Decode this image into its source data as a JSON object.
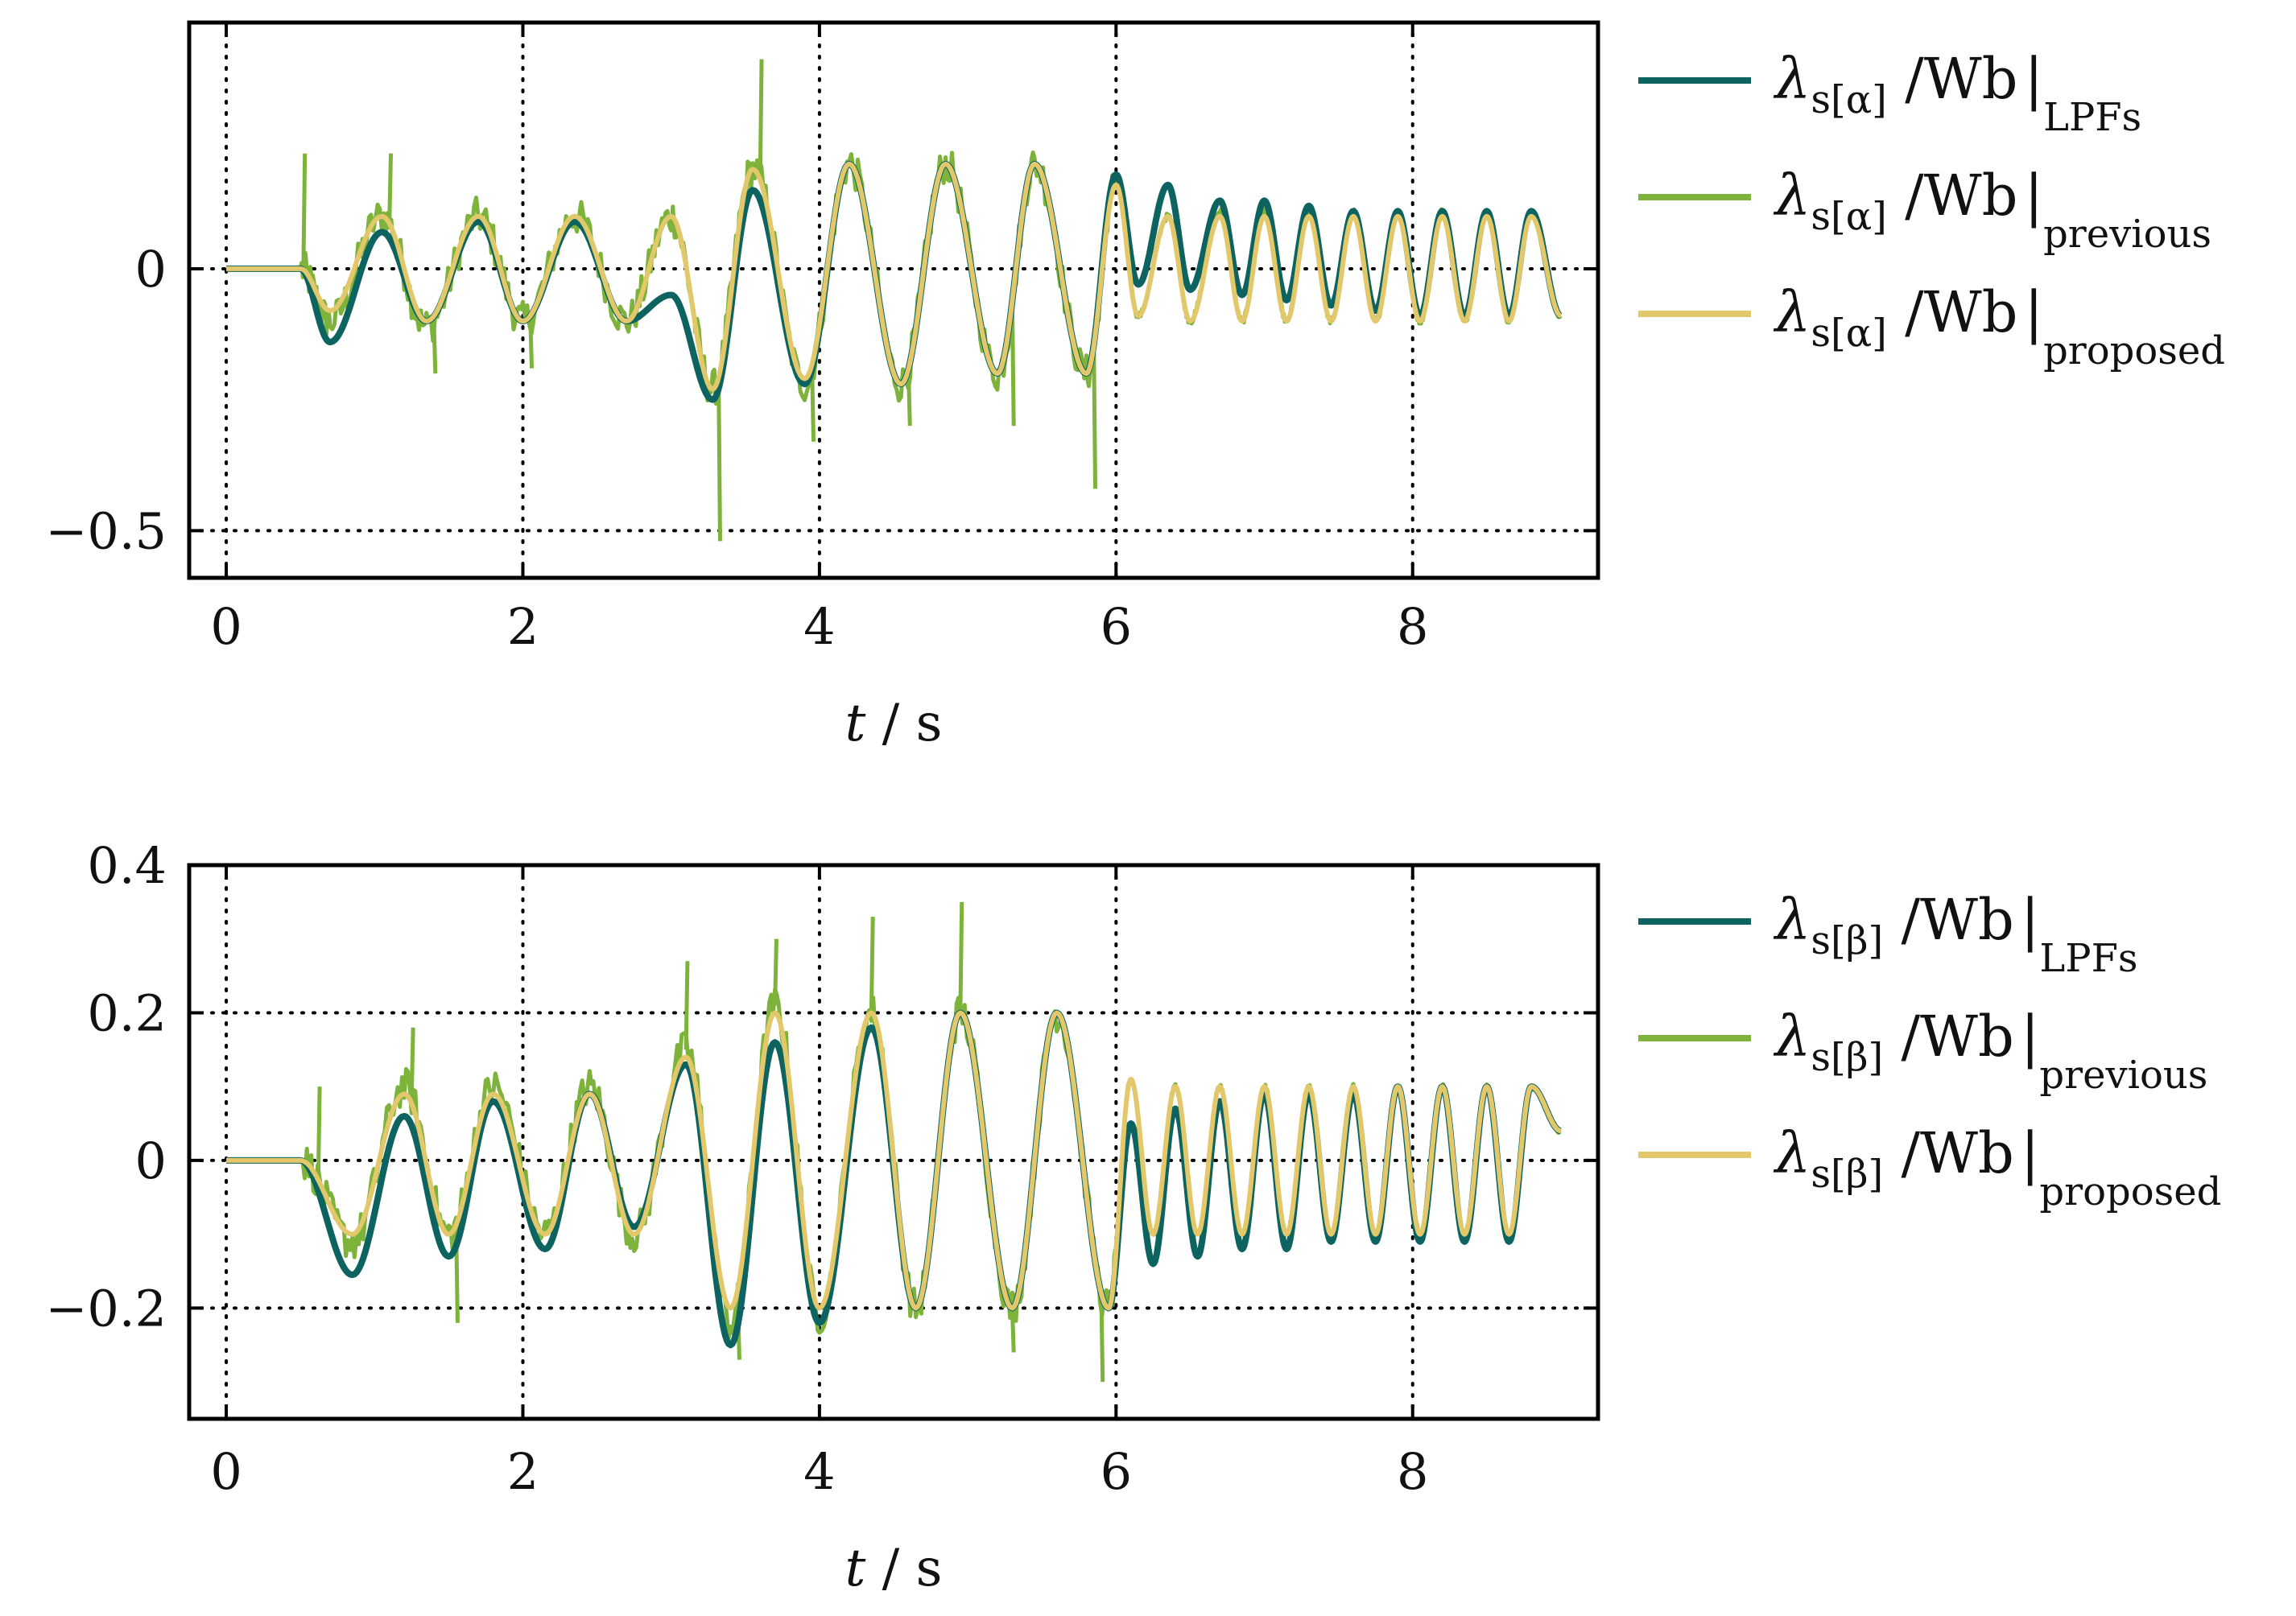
{
  "colors": {
    "lpfs": "#0d6360",
    "previous": "#7db33a",
    "proposed": "#e2c86a",
    "grid": "#000000",
    "axes": "#000000"
  },
  "chart_data": [
    {
      "type": "line",
      "xlabel": "t / s",
      "xlabel_parts": {
        "var": "t",
        "sep": " / ",
        "unit": "s"
      },
      "ylabel": "",
      "xlim": [
        -0.25,
        9.25
      ],
      "ylim": [
        -0.59,
        0.47
      ],
      "xticks": [
        0,
        2,
        4,
        6,
        8
      ],
      "yticks": [
        -0.5,
        0
      ],
      "ytick_labels": [
        "−0.5",
        "0"
      ],
      "grid": true,
      "grid_style": "dotted",
      "legend_position": "right",
      "legend": [
        {
          "symbol": "λ",
          "sub": "s[α]",
          "unit": " /Wb",
          "cond": "LPFs"
        },
        {
          "symbol": "λ",
          "sub": "s[α]",
          "unit": " /Wb",
          "cond": "previous"
        },
        {
          "symbol": "λ",
          "sub": "s[α]",
          "unit": " /Wb",
          "cond": "proposed"
        }
      ],
      "x": [
        0,
        0.5,
        0.7,
        1.05,
        1.35,
        1.7,
        2.0,
        2.35,
        2.7,
        3.0,
        3.28,
        3.55,
        3.9,
        4.2,
        4.55,
        4.85,
        5.2,
        5.45,
        5.8,
        6.0,
        6.15,
        6.35,
        6.5,
        6.7,
        6.85,
        7.0,
        7.15,
        7.3,
        7.45,
        7.6,
        7.75,
        7.9,
        8.05,
        8.2,
        8.35,
        8.5,
        8.65,
        8.8,
        9.0
      ],
      "series": [
        {
          "key": "lpfs",
          "values": [
            0,
            0,
            -0.14,
            0.07,
            -0.1,
            0.09,
            -0.1,
            0.09,
            -0.1,
            -0.05,
            -0.25,
            0.15,
            -0.22,
            0.2,
            -0.22,
            0.2,
            -0.2,
            0.2,
            -0.2,
            0.18,
            -0.03,
            0.16,
            -0.04,
            0.13,
            -0.05,
            0.13,
            -0.06,
            0.12,
            -0.07,
            0.11,
            -0.08,
            0.11,
            -0.09,
            0.11,
            -0.09,
            0.11,
            -0.09,
            0.11,
            -0.09
          ]
        },
        {
          "key": "previous",
          "values": [
            0,
            0,
            -0.1,
            0.1,
            -0.11,
            0.1,
            -0.1,
            0.1,
            -0.1,
            0.1,
            -0.23,
            0.19,
            -0.22,
            0.2,
            -0.22,
            0.2,
            -0.2,
            0.2,
            -0.2,
            0.17,
            -0.09,
            0.1,
            -0.1,
            0.11,
            -0.1,
            0.11,
            -0.1,
            0.11,
            -0.1,
            0.11,
            -0.1,
            0.11,
            -0.1,
            0.11,
            -0.1,
            0.11,
            -0.1,
            0.11,
            -0.09
          ]
        },
        {
          "key": "proposed",
          "values": [
            0,
            0,
            -0.08,
            0.1,
            -0.1,
            0.1,
            -0.1,
            0.1,
            -0.1,
            0.1,
            -0.23,
            0.19,
            -0.21,
            0.2,
            -0.22,
            0.2,
            -0.2,
            0.2,
            -0.2,
            0.16,
            -0.09,
            0.1,
            -0.1,
            0.1,
            -0.1,
            0.1,
            -0.1,
            0.1,
            -0.1,
            0.1,
            -0.1,
            0.1,
            -0.1,
            0.1,
            -0.1,
            0.1,
            -0.1,
            0.1,
            -0.09
          ]
        }
      ],
      "noisy_spikes_previous": [
        {
          "x": 0.52,
          "y": 0.22
        },
        {
          "x": 1.1,
          "y": 0.22
        },
        {
          "x": 1.4,
          "y": -0.2
        },
        {
          "x": 2.05,
          "y": -0.19
        },
        {
          "x": 3.32,
          "y": -0.52
        },
        {
          "x": 3.6,
          "y": 0.4
        },
        {
          "x": 3.95,
          "y": -0.33
        },
        {
          "x": 4.6,
          "y": -0.3
        },
        {
          "x": 5.3,
          "y": -0.3
        },
        {
          "x": 5.85,
          "y": -0.42
        }
      ]
    },
    {
      "type": "line",
      "xlabel": "t / s",
      "xlabel_parts": {
        "var": "t",
        "sep": " / ",
        "unit": "s"
      },
      "ylabel": "",
      "xlim": [
        -0.25,
        9.25
      ],
      "ylim": [
        -0.35,
        0.4
      ],
      "xticks": [
        0,
        2,
        4,
        6,
        8
      ],
      "yticks": [
        -0.2,
        0,
        0.2,
        0.4
      ],
      "ytick_labels": [
        "−0.2",
        "0",
        "0.2",
        "0.4"
      ],
      "grid": true,
      "grid_style": "dotted",
      "legend_position": "right",
      "legend": [
        {
          "symbol": "λ",
          "sub": "s[β]",
          "unit": " /Wb",
          "cond": "LPFs"
        },
        {
          "symbol": "λ",
          "sub": "s[β]",
          "unit": " /Wb",
          "cond": "previous"
        },
        {
          "symbol": "λ",
          "sub": "s[β]",
          "unit": " /Wb",
          "cond": "proposed"
        }
      ],
      "x": [
        0,
        0.5,
        0.85,
        1.2,
        1.5,
        1.8,
        2.15,
        2.45,
        2.75,
        3.1,
        3.4,
        3.7,
        4.0,
        4.35,
        4.65,
        4.95,
        5.3,
        5.6,
        5.95,
        6.1,
        6.25,
        6.4,
        6.55,
        6.7,
        6.85,
        7.0,
        7.15,
        7.3,
        7.45,
        7.6,
        7.75,
        7.9,
        8.05,
        8.2,
        8.35,
        8.5,
        8.65,
        8.8,
        9.0
      ],
      "series": [
        {
          "key": "lpfs",
          "values": [
            0,
            0,
            -0.155,
            0.06,
            -0.13,
            0.08,
            -0.12,
            0.09,
            -0.09,
            0.13,
            -0.25,
            0.16,
            -0.22,
            0.18,
            -0.2,
            0.2,
            -0.2,
            0.2,
            -0.2,
            0.05,
            -0.14,
            0.07,
            -0.13,
            0.08,
            -0.12,
            0.09,
            -0.12,
            0.09,
            -0.11,
            0.09,
            -0.11,
            0.1,
            -0.11,
            0.1,
            -0.11,
            0.1,
            -0.11,
            0.1,
            0.04
          ]
        },
        {
          "key": "previous",
          "values": [
            0,
            0,
            -0.11,
            0.1,
            -0.1,
            0.1,
            -0.1,
            0.1,
            -0.1,
            0.15,
            -0.22,
            0.21,
            -0.21,
            0.2,
            -0.2,
            0.2,
            -0.2,
            0.2,
            -0.2,
            0.11,
            -0.1,
            0.1,
            -0.1,
            0.1,
            -0.1,
            0.1,
            -0.1,
            0.1,
            -0.1,
            0.1,
            -0.1,
            0.1,
            -0.1,
            0.1,
            -0.1,
            0.1,
            -0.1,
            0.1,
            0.04
          ]
        },
        {
          "key": "proposed",
          "values": [
            0,
            0,
            -0.1,
            0.09,
            -0.1,
            0.09,
            -0.1,
            0.09,
            -0.1,
            0.14,
            -0.2,
            0.2,
            -0.2,
            0.2,
            -0.2,
            0.2,
            -0.2,
            0.2,
            -0.2,
            0.11,
            -0.1,
            0.1,
            -0.1,
            0.1,
            -0.1,
            0.1,
            -0.1,
            0.1,
            -0.1,
            0.1,
            -0.1,
            0.1,
            -0.1,
            0.1,
            -0.1,
            0.1,
            -0.1,
            0.1,
            0.04
          ]
        }
      ],
      "noisy_spikes_previous": [
        {
          "x": 0.62,
          "y": 0.1
        },
        {
          "x": 1.25,
          "y": 0.18
        },
        {
          "x": 1.55,
          "y": -0.22
        },
        {
          "x": 3.1,
          "y": 0.27
        },
        {
          "x": 3.7,
          "y": 0.3
        },
        {
          "x": 4.35,
          "y": 0.33
        },
        {
          "x": 4.95,
          "y": 0.35
        },
        {
          "x": 5.3,
          "y": -0.26
        },
        {
          "x": 5.9,
          "y": -0.3
        },
        {
          "x": 3.45,
          "y": -0.27
        }
      ]
    }
  ]
}
